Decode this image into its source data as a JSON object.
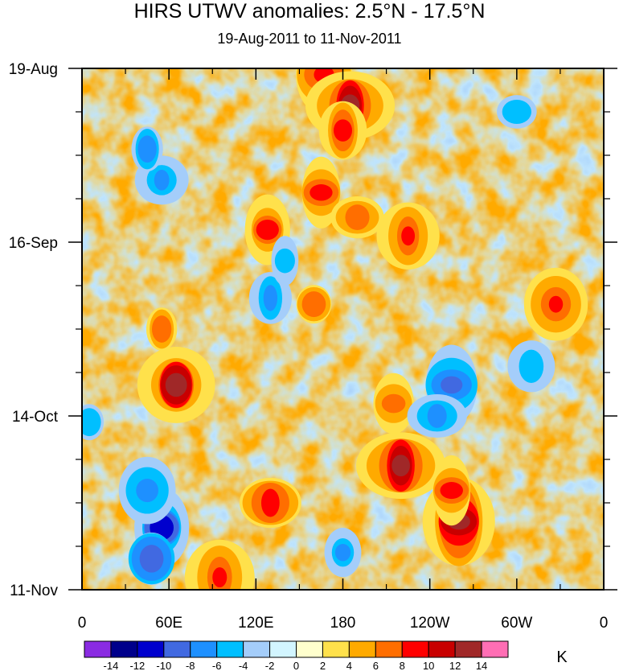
{
  "chart_data": {
    "type": "heatmap",
    "title": "HIRS UTWV anomalies: 2.5°N - 17.5°N",
    "subtitle": "19-Aug-2011 to 11-Nov-2011",
    "xlabel": "",
    "ylabel": "",
    "x_ticks": [
      "0",
      "60E",
      "120E",
      "180",
      "120W",
      "60W",
      "0"
    ],
    "x_tick_values": [
      0,
      60,
      120,
      180,
      240,
      300,
      360
    ],
    "xlim": [
      0,
      360
    ],
    "y_ticks": [
      "19-Aug",
      "16-Sep",
      "14-Oct",
      "11-Nov"
    ],
    "y_tick_days": [
      0,
      28,
      56,
      84
    ],
    "ylim_days": [
      0,
      84
    ],
    "colorbar": {
      "unit": "K",
      "labels": [
        "-14",
        "-12",
        "-10",
        "-8",
        "-6",
        "-4",
        "-2",
        "0",
        "2",
        "4",
        "6",
        "8",
        "10",
        "12",
        "14"
      ],
      "levels": [
        -14,
        -12,
        -10,
        -8,
        -6,
        -4,
        -2,
        0,
        2,
        4,
        6,
        8,
        10,
        12,
        14
      ],
      "colors": [
        "#8a2be2",
        "#00008b",
        "#0000cd",
        "#4169e1",
        "#1e90ff",
        "#00bfff",
        "#a4cdfa",
        "#d2f5ff",
        "#ffffcd",
        "#ffe14b",
        "#ffaa00",
        "#ff6e00",
        "#ff0000",
        "#c80000",
        "#a02828",
        "#ff6eb4"
      ]
    },
    "anomaly_centers": [
      {
        "lon": 167,
        "day": 1,
        "value": 9
      },
      {
        "lon": 185,
        "day": 6,
        "value": 12
      },
      {
        "lon": 180,
        "day": 10,
        "value": 8
      },
      {
        "lon": 165,
        "day": 20,
        "value": 8
      },
      {
        "lon": 190,
        "day": 24,
        "value": 7
      },
      {
        "lon": 225,
        "day": 27,
        "value": 8
      },
      {
        "lon": 128,
        "day": 26,
        "value": 9
      },
      {
        "lon": 160,
        "day": 38,
        "value": 6
      },
      {
        "lon": 327,
        "day": 38,
        "value": 8
      },
      {
        "lon": 65,
        "day": 51,
        "value": 12
      },
      {
        "lon": 55,
        "day": 42,
        "value": 6
      },
      {
        "lon": 215,
        "day": 54,
        "value": 6
      },
      {
        "lon": 220,
        "day": 64,
        "value": 12
      },
      {
        "lon": 260,
        "day": 73,
        "value": 13
      },
      {
        "lon": 255,
        "day": 68,
        "value": 8
      },
      {
        "lon": 130,
        "day": 70,
        "value": 9
      },
      {
        "lon": 95,
        "day": 82,
        "value": 9
      },
      {
        "lon": 55,
        "day": 74,
        "value": -11
      },
      {
        "lon": 48,
        "day": 79,
        "value": -9
      },
      {
        "lon": 45,
        "day": 68,
        "value": -7
      },
      {
        "lon": 55,
        "day": 18,
        "value": -7
      },
      {
        "lon": 45,
        "day": 13,
        "value": -6
      },
      {
        "lon": 255,
        "day": 51,
        "value": -9
      },
      {
        "lon": 245,
        "day": 56,
        "value": -7
      },
      {
        "lon": 130,
        "day": 37,
        "value": -6
      },
      {
        "lon": 140,
        "day": 31,
        "value": -5
      },
      {
        "lon": 300,
        "day": 7,
        "value": -5
      },
      {
        "lon": 310,
        "day": 48,
        "value": -5
      },
      {
        "lon": 180,
        "day": 78,
        "value": -6
      },
      {
        "lon": 5,
        "day": 57,
        "value": -5
      }
    ]
  }
}
